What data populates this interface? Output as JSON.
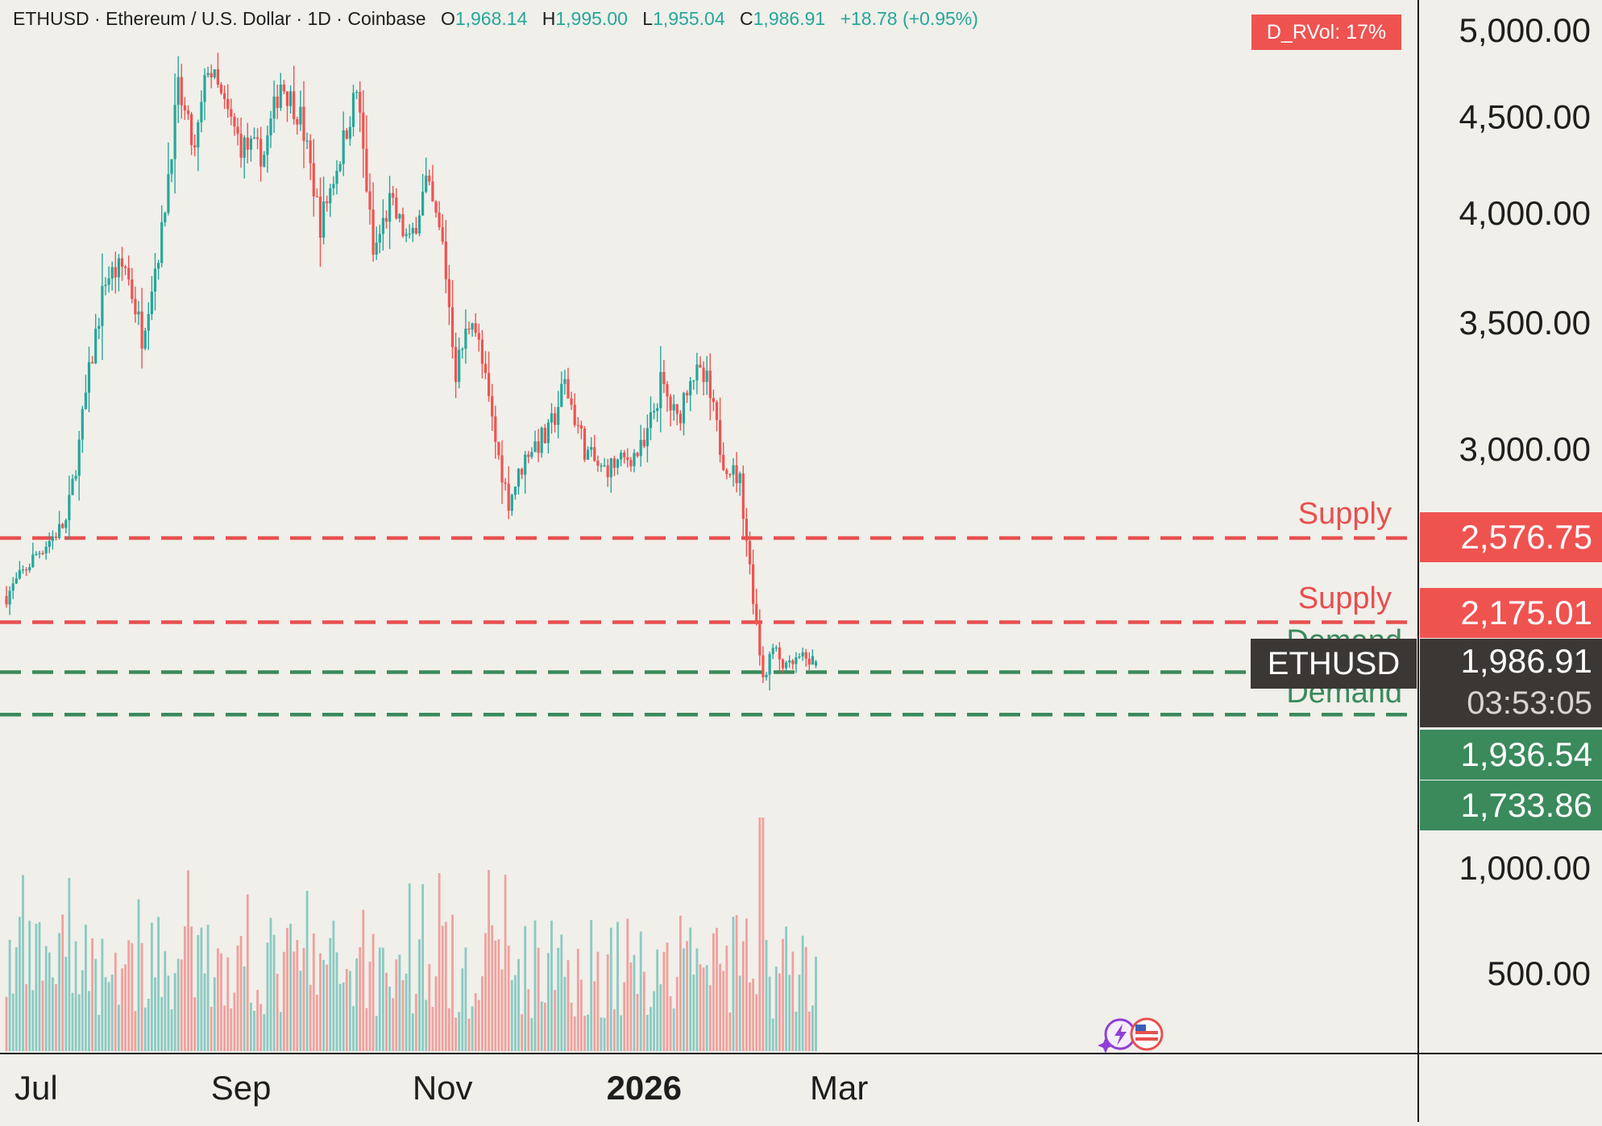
{
  "header": {
    "symbol_line": "ETHUSD · Ethereum / U.S. Dollar · 1D · Coinbase",
    "o_label": "O",
    "o_value": "1,968.14",
    "h_label": "H",
    "h_value": "1,995.00",
    "l_label": "L",
    "l_value": "1,955.04",
    "c_label": "C",
    "c_value": "1,986.91",
    "change": "+18.78 (+0.95%)"
  },
  "indicator": {
    "d_rvol": "D_RVol: 17%"
  },
  "colors": {
    "background": "#f0efea",
    "up": "#26a69a",
    "down": "#ef5350",
    "supply": "#e84f4f",
    "demand": "#3a8a5c",
    "price_tag_bg": "#3b3734"
  },
  "zones": {
    "supply_label_1": "Supply",
    "supply_label_2": "Supply",
    "demand_label_1": "Demand",
    "demand_label_2": "Demand",
    "supply_upper": "2,576.75",
    "supply_lower": "2,175.01",
    "demand_upper": "1,936.54",
    "demand_lower": "1,733.86"
  },
  "price_tag": {
    "symbol": "ETHUSD",
    "price": "1,986.91",
    "countdown": "03:53:05"
  },
  "icons": [
    "sparkle-icon",
    "lightning-icon",
    "us-flag-icon"
  ],
  "chart_data": {
    "type": "candlestick",
    "title": "ETHUSD · Ethereum / U.S. Dollar · 1D · Coinbase",
    "ylim": [
      0,
      5000
    ],
    "y_ticks": [
      "5,000.00",
      "4,500.00",
      "4,000.00",
      "3,500.00",
      "3,000.00",
      "1,000.00",
      "500.00"
    ],
    "x_ticks": [
      "Jul",
      "Sep",
      "Nov",
      "2026",
      "Mar"
    ],
    "x_tick_dates": [
      "2025-07-01",
      "2025-09-01",
      "2025-11-01",
      "2026-01-01",
      "2026-03-01"
    ],
    "series_start": "2025-06-22",
    "series_end": "2026-02-22",
    "last": {
      "open": 1968.14,
      "high": 1995.0,
      "low": 1955.04,
      "close": 1986.91,
      "change": 18.78,
      "change_pct": 0.95
    },
    "key_levels": [
      {
        "label": "Supply",
        "value": 2576.75
      },
      {
        "label": "Supply",
        "value": 2175.01
      },
      {
        "label": "Demand",
        "value": 1936.54
      },
      {
        "label": "Demand",
        "value": 1733.86
      }
    ],
    "price_path": [
      [
        "2025-06-22",
        2300
      ],
      [
        "2025-07-01",
        2500
      ],
      [
        "2025-07-10",
        2650
      ],
      [
        "2025-07-16",
        3200
      ],
      [
        "2025-07-22",
        3700
      ],
      [
        "2025-07-28",
        3750
      ],
      [
        "2025-08-02",
        3450
      ],
      [
        "2025-08-08",
        3900
      ],
      [
        "2025-08-13",
        4650
      ],
      [
        "2025-08-18",
        4300
      ],
      [
        "2025-08-22",
        4800
      ],
      [
        "2025-08-27",
        4550
      ],
      [
        "2025-09-01",
        4350
      ],
      [
        "2025-09-08",
        4300
      ],
      [
        "2025-09-13",
        4700
      ],
      [
        "2025-09-19",
        4500
      ],
      [
        "2025-09-25",
        3950
      ],
      [
        "2025-10-01",
        4300
      ],
      [
        "2025-10-06",
        4650
      ],
      [
        "2025-10-11",
        3800
      ],
      [
        "2025-10-16",
        4050
      ],
      [
        "2025-10-22",
        3850
      ],
      [
        "2025-10-27",
        4150
      ],
      [
        "2025-11-01",
        3850
      ],
      [
        "2025-11-05",
        3300
      ],
      [
        "2025-11-10",
        3550
      ],
      [
        "2025-11-16",
        3100
      ],
      [
        "2025-11-21",
        2750
      ],
      [
        "2025-11-27",
        3000
      ],
      [
        "2025-12-03",
        3050
      ],
      [
        "2025-12-08",
        3250
      ],
      [
        "2025-12-14",
        3000
      ],
      [
        "2025-12-19",
        2900
      ],
      [
        "2025-12-26",
        2950
      ],
      [
        "2026-01-01",
        3000
      ],
      [
        "2026-01-06",
        3250
      ],
      [
        "2026-01-11",
        3100
      ],
      [
        "2026-01-15",
        3300
      ],
      [
        "2026-01-20",
        3250
      ],
      [
        "2026-01-25",
        2950
      ],
      [
        "2026-01-30",
        2850
      ],
      [
        "2026-02-03",
        2300
      ],
      [
        "2026-02-06",
        1900
      ],
      [
        "2026-02-09",
        2050
      ],
      [
        "2026-02-13",
        1950
      ],
      [
        "2026-02-17",
        2000
      ],
      [
        "2026-02-22",
        1986.91
      ]
    ],
    "volume_spikes": [
      "2026-02-05",
      "2026-02-06"
    ]
  }
}
